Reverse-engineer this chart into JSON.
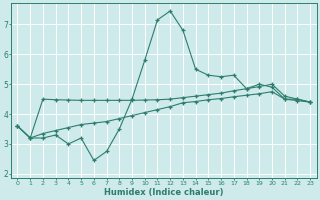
{
  "xlabel": "Humidex (Indice chaleur)",
  "bg_color": "#ceeaea",
  "grid_color": "#ffffff",
  "line_color": "#2d7d6e",
  "xlim": [
    -0.5,
    23.5
  ],
  "ylim": [
    1.85,
    7.7
  ],
  "xtick_labels": [
    "0",
    "1",
    "2",
    "3",
    "4",
    "5",
    "6",
    "7",
    "8",
    "9",
    "10",
    "11",
    "12",
    "13",
    "14",
    "15",
    "16",
    "17",
    "18",
    "19",
    "20",
    "21",
    "22",
    "23"
  ],
  "ytick_vals": [
    2,
    3,
    4,
    5,
    6,
    7
  ],
  "line1_x": [
    0,
    1,
    2,
    3,
    4,
    5,
    6,
    7,
    8,
    9,
    10,
    11,
    12,
    13,
    14,
    15,
    16,
    17,
    18,
    19,
    20,
    21,
    22,
    23
  ],
  "line1_y": [
    3.6,
    3.2,
    3.2,
    3.3,
    3.0,
    3.2,
    2.45,
    2.75,
    3.5,
    4.5,
    5.8,
    7.15,
    7.45,
    6.8,
    5.5,
    5.3,
    5.25,
    5.3,
    4.85,
    5.0,
    4.9,
    4.5,
    4.5,
    4.4
  ],
  "line2_x": [
    0,
    1,
    2,
    3,
    4,
    5,
    6,
    7,
    8,
    9,
    10,
    11,
    12,
    13,
    14,
    15,
    16,
    17,
    18,
    19,
    20,
    21,
    22,
    23
  ],
  "line2_y": [
    3.6,
    3.2,
    4.5,
    4.48,
    4.47,
    4.46,
    4.46,
    4.46,
    4.46,
    4.46,
    4.47,
    4.48,
    4.5,
    4.55,
    4.6,
    4.65,
    4.7,
    4.78,
    4.85,
    4.92,
    5.0,
    4.6,
    4.5,
    4.4
  ],
  "line3_x": [
    0,
    1,
    2,
    3,
    4,
    5,
    6,
    7,
    8,
    9,
    10,
    11,
    12,
    13,
    14,
    15,
    16,
    17,
    18,
    19,
    20,
    21,
    22,
    23
  ],
  "line3_y": [
    3.6,
    3.2,
    3.35,
    3.45,
    3.55,
    3.65,
    3.7,
    3.75,
    3.85,
    3.95,
    4.05,
    4.15,
    4.25,
    4.38,
    4.42,
    4.48,
    4.52,
    4.58,
    4.63,
    4.68,
    4.75,
    4.5,
    4.45,
    4.4
  ]
}
